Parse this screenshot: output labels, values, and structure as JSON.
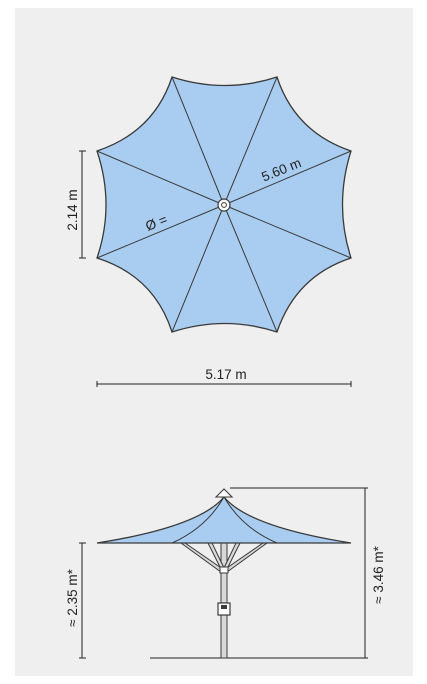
{
  "colors": {
    "canopy": "#a9cdf0",
    "outline": "#3a3a3a",
    "dimension_line": "#222222",
    "pole": "#d8d8d8",
    "background": "#efefef"
  },
  "top_view": {
    "diagonal_label": "5.60 m",
    "diameter_symbol": "Ø =",
    "side_height_label": "2.14 m",
    "width_label": "5.17 m"
  },
  "side_view": {
    "clearance_label": "≈ 2.35 m*",
    "total_height_label": "≈ 3.46 m*"
  }
}
